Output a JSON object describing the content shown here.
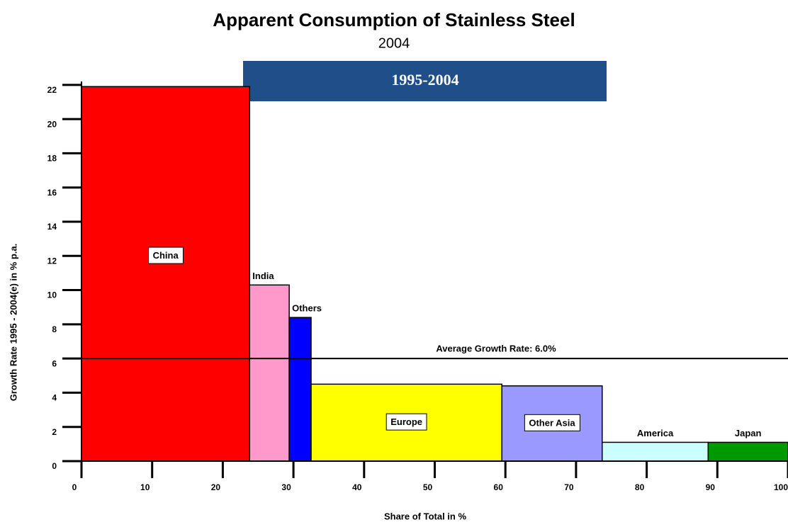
{
  "chart_data": {
    "type": "variwide",
    "title": "Apparent Consumption of Stainless Steel",
    "subtitle": "2004",
    "annotation": "1995-2004",
    "y_label": "Growth Rate 1995 -  2004(e) in % p.a.",
    "x_label": "Share of Total in %",
    "categories": [
      "China",
      "India",
      "Others",
      "Europe",
      "Other Asia",
      "America",
      "Japan"
    ],
    "widths": [
      23.8,
      5.6,
      3.1,
      27.0,
      14.2,
      15.0,
      11.3
    ],
    "values": [
      21.9,
      10.3,
      8.4,
      4.5,
      4.4,
      1.1,
      1.1
    ],
    "colors": [
      "#ff0000",
      "#ff99cc",
      "#0000ff",
      "#ffff00",
      "#9999ff",
      "#ccffff",
      "#009900"
    ],
    "average": {
      "value": 6.0,
      "label": "Average Growth Rate: 6.0%"
    },
    "xlim": [
      0,
      100
    ],
    "xticks": [
      0,
      10,
      20,
      30,
      40,
      50,
      60,
      70,
      80,
      90,
      100
    ],
    "ylim": [
      0,
      22.2
    ],
    "yticks": [
      0,
      2,
      4,
      6,
      8,
      10,
      12,
      14,
      16,
      18,
      20,
      22
    ]
  }
}
